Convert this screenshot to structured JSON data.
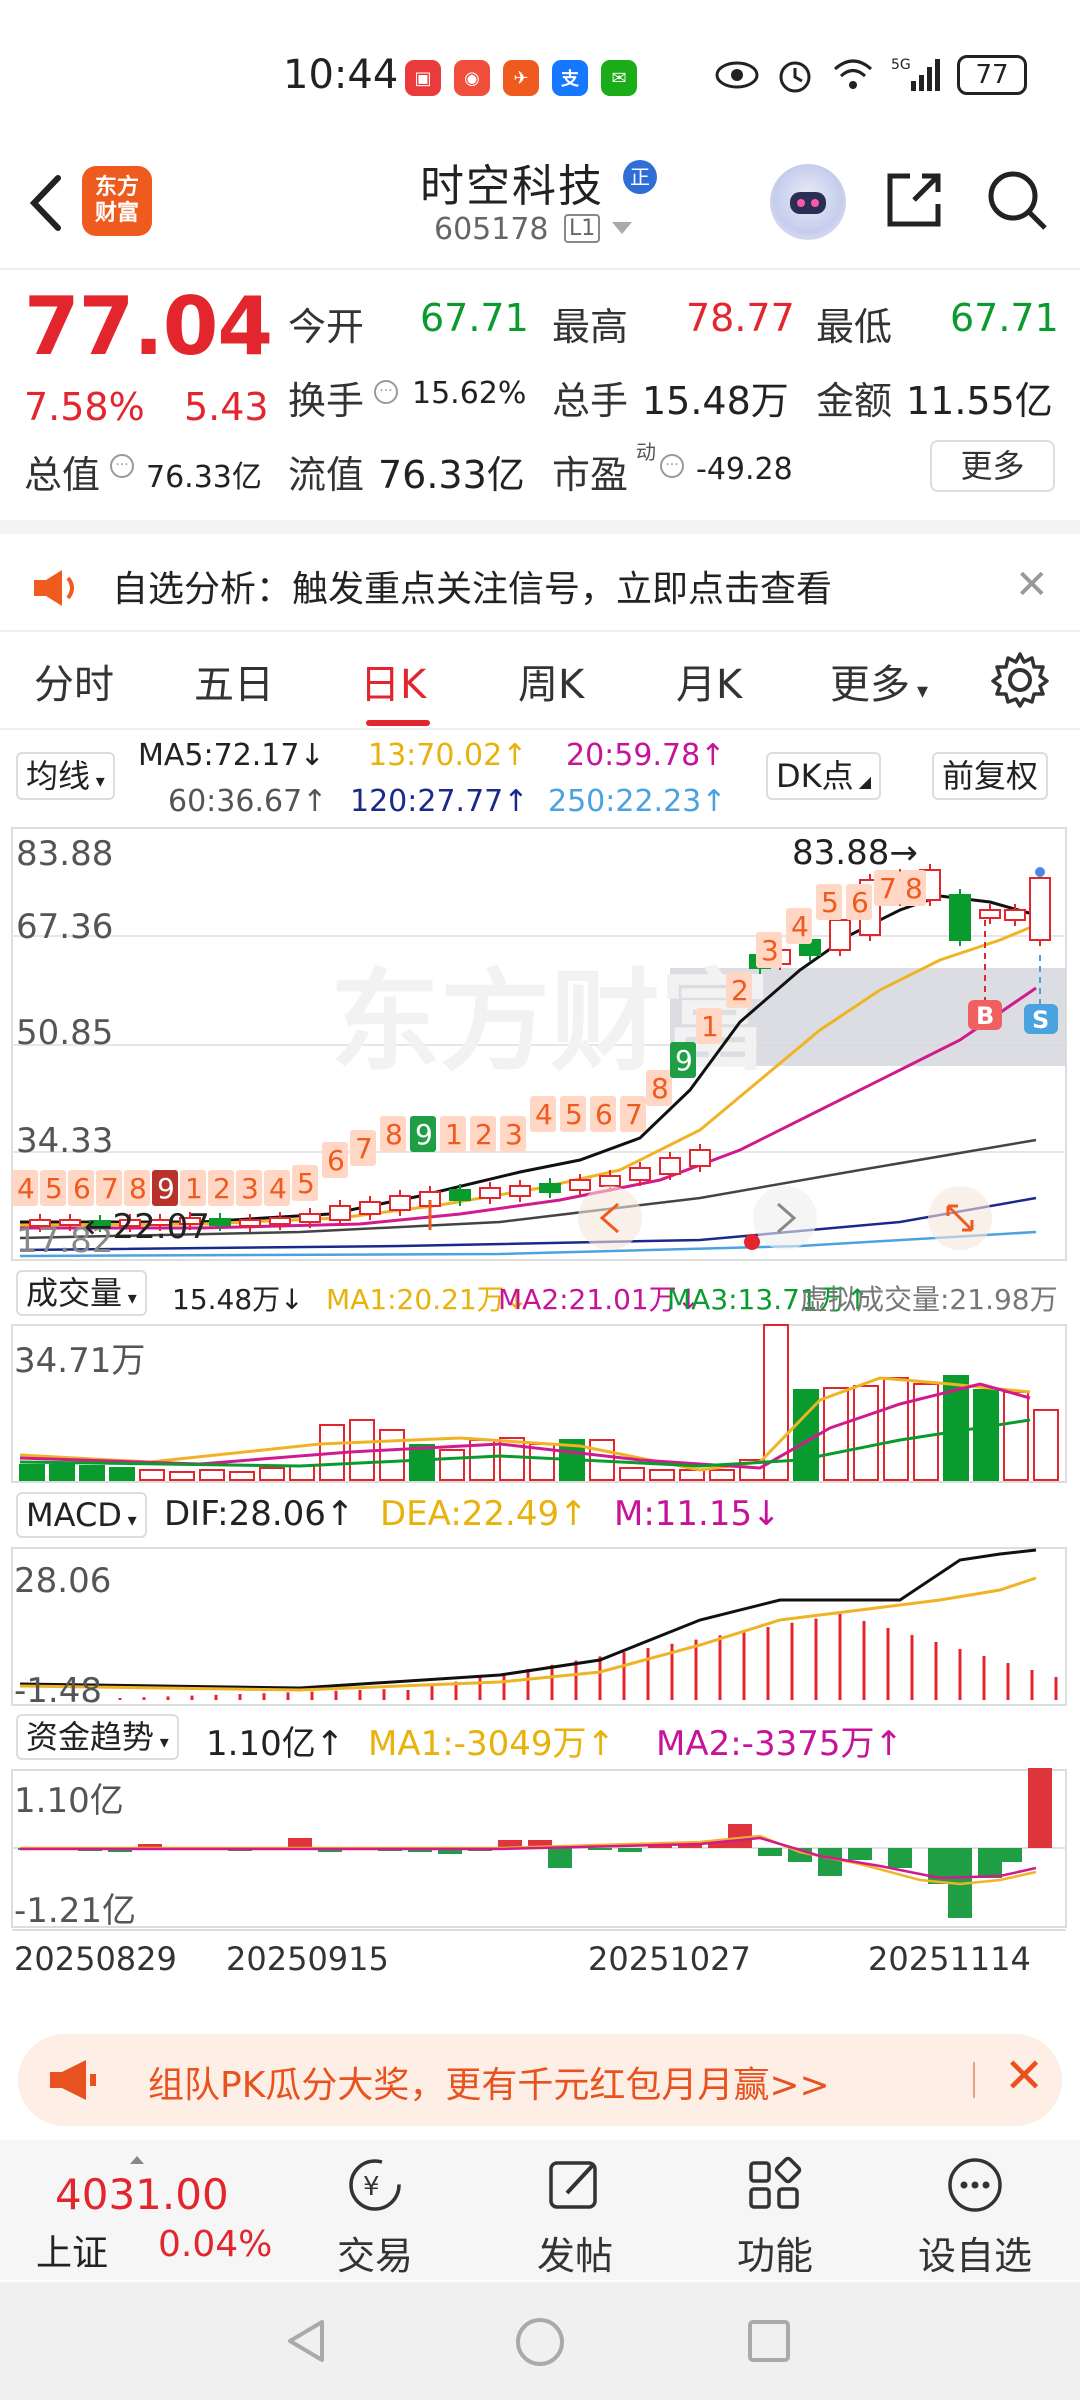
{
  "status_bar": {
    "time": "10:44",
    "battery": "77",
    "network": "5G"
  },
  "header": {
    "logo_line1": "东方",
    "logo_line2": "财富",
    "stock_name": "时空科技",
    "stock_tag": "正",
    "stock_code": "605178",
    "level": "L1"
  },
  "quote": {
    "price": "77.04",
    "change_pct": "7.58%",
    "change": "5.43",
    "open_label": "今开",
    "open": "67.71",
    "high_label": "最高",
    "high": "78.77",
    "low_label": "最低",
    "low": "67.71",
    "turnover_label": "换手",
    "turnover": "15.62%",
    "volume_label": "总手",
    "volume": "15.48万",
    "amount_label": "金额",
    "amount": "11.55亿",
    "mktcap_label": "总值",
    "mktcap": "76.33亿",
    "float_label": "流值",
    "float": "76.33亿",
    "pe_label": "市盈",
    "pe_sup": "动",
    "pe": "-49.28",
    "more_label": "更多"
  },
  "notice": {
    "text": "自选分析：触发重点关注信号，立即点击查看"
  },
  "tabs": [
    "分时",
    "五日",
    "日K",
    "周K",
    "月K",
    "更多"
  ],
  "active_tab": "日K",
  "ma_row": {
    "select": "均线",
    "ma5": "MA5:72.17↓",
    "ma13": "13:70.02↑",
    "ma20": "20:59.78↑",
    "ma60": "60:36.67↑",
    "ma120": "120:27.77↑",
    "ma250": "250:22.23↑",
    "dk_label": "DK点",
    "adj_label": "前复权"
  },
  "kline": {
    "y_high": "83.88",
    "y_2": "67.36",
    "y_3": "50.85",
    "y_4": "34.33",
    "y_low": "17.82",
    "min_marker": "22.07",
    "max_marker": "83.88",
    "watermark": "东方财富",
    "seq_left": [
      "4",
      "5",
      "6",
      "7",
      "8",
      "9",
      "1",
      "2",
      "3",
      "4",
      "5",
      "6",
      "7",
      "8",
      "9",
      "1",
      "2",
      "3",
      "4",
      "5",
      "6",
      "7",
      "8",
      "9",
      "1",
      "2",
      "3",
      "4",
      "5",
      "6",
      "7",
      "8"
    ],
    "marker_b": "B",
    "marker_s": "S"
  },
  "volume": {
    "select": "成交量",
    "vol": "15.48万↓",
    "ma1": "MA1:20.21万↓",
    "ma2": "MA2:21.01万↓",
    "ma3": "MA3:13.71万↑",
    "virtual": "虚拟成交量:21.98万",
    "y_max": "34.71万"
  },
  "macd": {
    "select": "MACD",
    "dif": "DIF:28.06↑",
    "dea": "DEA:22.49↑",
    "m": "M:11.15↓",
    "y_max": "28.06",
    "y_min": "-1.48"
  },
  "fund": {
    "select": "资金趋势",
    "value": "1.10亿↑",
    "ma1": "MA1:-3049万↑",
    "ma2": "MA2:-3375万↑",
    "y_max": "1.10亿",
    "y_min": "-1.21亿"
  },
  "dates": [
    "20250829",
    "20250915",
    "20251027",
    "20251114"
  ],
  "promo": {
    "text": "组队PK瓜分大奖，更有千元红包月月赢>>"
  },
  "bottom": {
    "index_value": "4031.00",
    "index_name": "上证",
    "index_change": "0.04%",
    "nav": [
      "交易",
      "发帖",
      "功能",
      "设自选"
    ]
  },
  "colors": {
    "up": "#e3262e",
    "down": "#0a9b2e",
    "accent": "#ef5b1f"
  }
}
